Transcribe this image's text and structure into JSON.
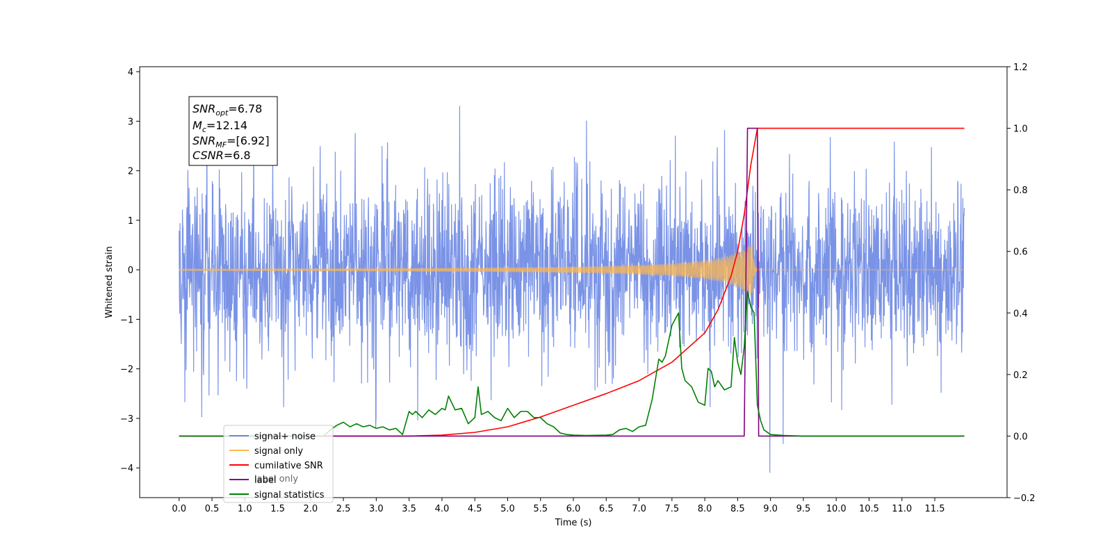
{
  "chart_data": {
    "type": "line",
    "xlabel": "Time (s)",
    "ylabel": "Whitened strain",
    "xlim": [
      -0.6,
      12.6
    ],
    "xticks": [
      0.0,
      0.5,
      1.0,
      1.5,
      2.0,
      2.5,
      3.0,
      3.5,
      4.0,
      4.5,
      5.0,
      5.5,
      6.0,
      6.5,
      7.0,
      7.5,
      8.0,
      8.5,
      9.0,
      9.5,
      10.0,
      10.5,
      11.0,
      11.5
    ],
    "xtick_labels": [
      "0.0",
      "0.5",
      "1.0",
      "1.5",
      "2.0",
      "2.5",
      "3.0",
      "3.5",
      "4.0",
      "4.5",
      "5.0",
      "5.5",
      "6.0",
      "6.5",
      "7.0",
      "7.5",
      "8.0",
      "8.5",
      "9.0",
      "9.5",
      "10.0",
      "10.5",
      "11.0",
      "11.5"
    ],
    "ylim_left": [
      -4.6,
      4.1
    ],
    "yticks_left": [
      4,
      3,
      2,
      1,
      0,
      -1,
      -2,
      -3,
      -4
    ],
    "ytick_labels_left": [
      "4",
      "3",
      "2",
      "1",
      "0",
      "−1",
      "−2",
      "−3",
      "−4"
    ],
    "ylim_right": [
      -0.2,
      1.2
    ],
    "yticks_right": [
      1.2,
      1.0,
      0.8,
      0.6,
      0.4,
      0.2,
      0.0,
      -0.2
    ],
    "ytick_labels_right": [
      "1.2",
      "1.0",
      "0.8",
      "0.6",
      "0.4",
      "0.2",
      "0.0",
      "−0.2"
    ],
    "grid": false,
    "legend_position": "lower-left",
    "annotation": {
      "lines": [
        {
          "main": "SNR",
          "sub": "opt",
          "rest": "=6.78"
        },
        {
          "main": "M",
          "sub": "c",
          "rest": "=12.14"
        },
        {
          "main": "SNR",
          "sub": "MF",
          "rest": "=[6.92]"
        },
        {
          "main": "CSNR",
          "sub": "",
          "rest": "=6.8"
        }
      ]
    },
    "series": [
      {
        "name": "signal+ noise",
        "color": "#6b87e3",
        "axis": "left",
        "description_kind": "noise",
        "t_start": 0.0,
        "t_end": 11.95,
        "std": 0.85
      },
      {
        "name": "signal only",
        "color": "#ffb74d",
        "axis": "left",
        "description_kind": "chirp",
        "t_start": 0.0,
        "t_end": 11.95,
        "merger_time": 8.72
      },
      {
        "name": "cumilative SNR",
        "color": "#ff0000",
        "axis": "right",
        "x": [
          0.0,
          3.5,
          4.0,
          4.5,
          5.0,
          5.5,
          6.0,
          6.5,
          7.0,
          7.5,
          8.0,
          8.2,
          8.4,
          8.5,
          8.6,
          8.7,
          8.8,
          9.0,
          11.95
        ],
        "y": [
          0.0,
          0.0,
          0.003,
          0.012,
          0.03,
          0.062,
          0.1,
          0.138,
          0.18,
          0.24,
          0.335,
          0.41,
          0.52,
          0.6,
          0.72,
          0.88,
          1.0,
          1.0,
          1.0
        ]
      },
      {
        "name": "label",
        "color": "#800080",
        "axis": "right",
        "x": [
          0.0,
          8.6,
          8.65,
          8.8,
          8.82,
          11.95
        ],
        "y": [
          0.0,
          0.0,
          1.0,
          1.0,
          0.0,
          0.0
        ]
      },
      {
        "name": "signal statistics",
        "color": "#008000",
        "axis": "right",
        "x": [
          0.0,
          2.2,
          2.3,
          2.4,
          2.5,
          2.6,
          2.7,
          2.8,
          2.9,
          3.0,
          3.1,
          3.2,
          3.3,
          3.4,
          3.5,
          3.55,
          3.6,
          3.7,
          3.8,
          3.9,
          4.0,
          4.05,
          4.1,
          4.2,
          4.3,
          4.4,
          4.5,
          4.55,
          4.6,
          4.7,
          4.8,
          4.9,
          5.0,
          5.1,
          5.2,
          5.3,
          5.4,
          5.5,
          5.6,
          5.7,
          5.8,
          5.9,
          6.0,
          6.2,
          6.5,
          6.6,
          6.7,
          6.8,
          6.9,
          7.0,
          7.1,
          7.2,
          7.3,
          7.35,
          7.4,
          7.5,
          7.55,
          7.6,
          7.65,
          7.7,
          7.8,
          7.9,
          8.0,
          8.05,
          8.1,
          8.15,
          8.2,
          8.3,
          8.4,
          8.45,
          8.5,
          8.55,
          8.6,
          8.65,
          8.7,
          8.75,
          8.8,
          8.85,
          8.9,
          9.0,
          9.2,
          9.5,
          11.95
        ],
        "y": [
          0.0,
          0.0,
          0.02,
          0.035,
          0.045,
          0.03,
          0.04,
          0.03,
          0.035,
          0.025,
          0.03,
          0.02,
          0.025,
          0.005,
          0.08,
          0.07,
          0.08,
          0.06,
          0.085,
          0.07,
          0.09,
          0.085,
          0.13,
          0.085,
          0.09,
          0.04,
          0.06,
          0.16,
          0.07,
          0.08,
          0.06,
          0.05,
          0.09,
          0.06,
          0.08,
          0.08,
          0.06,
          0.06,
          0.04,
          0.03,
          0.01,
          0.005,
          0.003,
          0.002,
          0.003,
          0.005,
          0.02,
          0.025,
          0.015,
          0.03,
          0.035,
          0.12,
          0.25,
          0.24,
          0.26,
          0.36,
          0.38,
          0.4,
          0.22,
          0.18,
          0.16,
          0.11,
          0.1,
          0.22,
          0.21,
          0.16,
          0.18,
          0.15,
          0.16,
          0.32,
          0.24,
          0.2,
          0.29,
          0.47,
          0.42,
          0.4,
          0.1,
          0.05,
          0.02,
          0.005,
          0.002,
          0.0,
          0.0
        ]
      }
    ],
    "legend_entries": [
      {
        "label": "signal+ noise",
        "color": "#6b87e3"
      },
      {
        "label": "signal only",
        "color": "#ffb74d"
      },
      {
        "label": "cumilative SNR",
        "color": "#ff0000"
      },
      {
        "label": "label",
        "color": "#800080"
      },
      {
        "label": "signal statistics",
        "color": "#008000"
      }
    ],
    "hidden_legend_label_fragment": "label only"
  }
}
